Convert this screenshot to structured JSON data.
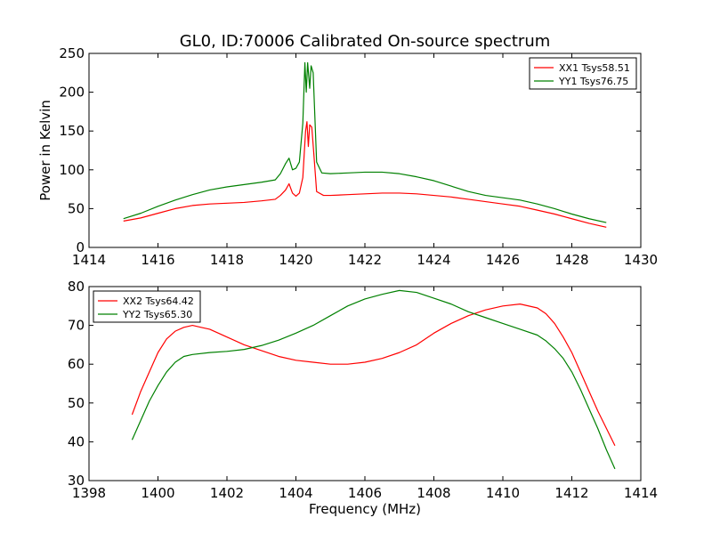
{
  "figure": {
    "title": "GL0, ID:70006 Calibrated On-source spectrum"
  },
  "chart_data": [
    {
      "type": "line",
      "title": "GL0, ID:70006 Calibrated On-source spectrum",
      "xlabel": "",
      "ylabel": "Power in Kelvin",
      "xlim": [
        1414,
        1430
      ],
      "ylim": [
        0,
        250
      ],
      "xticks": [
        "1414",
        "1416",
        "1418",
        "1420",
        "1422",
        "1424",
        "1426",
        "1428",
        "1430"
      ],
      "yticks": [
        "0",
        "50",
        "100",
        "150",
        "200",
        "250"
      ],
      "legend_position": "top-right",
      "grid": false,
      "series": [
        {
          "name": "XX1 Tsys58.51",
          "color": "#ff0000",
          "points": [
            [
              1415.0,
              34
            ],
            [
              1415.5,
              38
            ],
            [
              1416.0,
              44
            ],
            [
              1416.5,
              50
            ],
            [
              1417.0,
              54
            ],
            [
              1417.5,
              56
            ],
            [
              1418.0,
              57
            ],
            [
              1418.5,
              58
            ],
            [
              1419.0,
              60
            ],
            [
              1419.4,
              62
            ],
            [
              1419.55,
              67
            ],
            [
              1419.7,
              74
            ],
            [
              1419.8,
              82
            ],
            [
              1419.9,
              70
            ],
            [
              1420.0,
              66
            ],
            [
              1420.1,
              70
            ],
            [
              1420.2,
              90
            ],
            [
              1420.28,
              150
            ],
            [
              1420.32,
              162
            ],
            [
              1420.36,
              130
            ],
            [
              1420.4,
              158
            ],
            [
              1420.46,
              155
            ],
            [
              1420.52,
              120
            ],
            [
              1420.6,
              72
            ],
            [
              1420.8,
              67
            ],
            [
              1421.0,
              67
            ],
            [
              1421.5,
              68
            ],
            [
              1422.0,
              69
            ],
            [
              1422.5,
              70
            ],
            [
              1423.0,
              70
            ],
            [
              1423.5,
              69
            ],
            [
              1424.0,
              67
            ],
            [
              1424.5,
              65
            ],
            [
              1425.0,
              62
            ],
            [
              1425.5,
              59
            ],
            [
              1426.0,
              56
            ],
            [
              1426.5,
              53
            ],
            [
              1427.0,
              48
            ],
            [
              1427.5,
              43
            ],
            [
              1428.0,
              37
            ],
            [
              1428.5,
              31
            ],
            [
              1429.0,
              26
            ]
          ]
        },
        {
          "name": "YY1 Tsys76.75",
          "color": "#008000",
          "points": [
            [
              1415.0,
              37
            ],
            [
              1415.5,
              44
            ],
            [
              1416.0,
              53
            ],
            [
              1416.5,
              61
            ],
            [
              1417.0,
              68
            ],
            [
              1417.5,
              74
            ],
            [
              1418.0,
              78
            ],
            [
              1418.5,
              81
            ],
            [
              1419.0,
              84
            ],
            [
              1419.4,
              87
            ],
            [
              1419.55,
              95
            ],
            [
              1419.7,
              108
            ],
            [
              1419.8,
              115
            ],
            [
              1419.9,
              100
            ],
            [
              1420.0,
              102
            ],
            [
              1420.1,
              110
            ],
            [
              1420.2,
              160
            ],
            [
              1420.26,
              238
            ],
            [
              1420.3,
              200
            ],
            [
              1420.34,
              238
            ],
            [
              1420.4,
              205
            ],
            [
              1420.44,
              234
            ],
            [
              1420.5,
              225
            ],
            [
              1420.6,
              110
            ],
            [
              1420.75,
              96
            ],
            [
              1421.0,
              95
            ],
            [
              1421.5,
              96
            ],
            [
              1422.0,
              97
            ],
            [
              1422.5,
              97
            ],
            [
              1423.0,
              95
            ],
            [
              1423.5,
              91
            ],
            [
              1424.0,
              86
            ],
            [
              1424.5,
              79
            ],
            [
              1425.0,
              72
            ],
            [
              1425.5,
              67
            ],
            [
              1426.0,
              64
            ],
            [
              1426.5,
              61
            ],
            [
              1427.0,
              56
            ],
            [
              1427.5,
              50
            ],
            [
              1428.0,
              43
            ],
            [
              1428.5,
              37
            ],
            [
              1429.0,
              32
            ]
          ]
        }
      ]
    },
    {
      "type": "line",
      "title": "",
      "xlabel": "Frequency (MHz)",
      "ylabel": "",
      "xlim": [
        1398,
        1414
      ],
      "ylim": [
        30,
        80
      ],
      "xticks": [
        "1398",
        "1400",
        "1402",
        "1404",
        "1406",
        "1408",
        "1410",
        "1412",
        "1414"
      ],
      "yticks": [
        "30",
        "40",
        "50",
        "60",
        "70",
        "80"
      ],
      "legend_position": "top-left",
      "grid": false,
      "series": [
        {
          "name": "XX2 Tsys64.42",
          "color": "#ff0000",
          "points": [
            [
              1399.25,
              47
            ],
            [
              1399.5,
              53
            ],
            [
              1399.75,
              58
            ],
            [
              1400.0,
              63
            ],
            [
              1400.25,
              66.5
            ],
            [
              1400.5,
              68.5
            ],
            [
              1400.75,
              69.5
            ],
            [
              1401.0,
              70
            ],
            [
              1401.25,
              69.5
            ],
            [
              1401.5,
              69
            ],
            [
              1402.0,
              67
            ],
            [
              1402.5,
              65
            ],
            [
              1403.0,
              63.5
            ],
            [
              1403.5,
              62
            ],
            [
              1404.0,
              61
            ],
            [
              1404.5,
              60.5
            ],
            [
              1405.0,
              60
            ],
            [
              1405.5,
              60
            ],
            [
              1406.0,
              60.5
            ],
            [
              1406.5,
              61.5
            ],
            [
              1407.0,
              63
            ],
            [
              1407.5,
              65
            ],
            [
              1408.0,
              68
            ],
            [
              1408.5,
              70.5
            ],
            [
              1409.0,
              72.5
            ],
            [
              1409.5,
              74
            ],
            [
              1410.0,
              75
            ],
            [
              1410.5,
              75.5
            ],
            [
              1411.0,
              74.5
            ],
            [
              1411.25,
              73
            ],
            [
              1411.5,
              70.5
            ],
            [
              1411.75,
              67
            ],
            [
              1412.0,
              63
            ],
            [
              1412.25,
              58
            ],
            [
              1412.5,
              53
            ],
            [
              1412.75,
              48
            ],
            [
              1413.0,
              43.5
            ],
            [
              1413.25,
              39
            ]
          ]
        },
        {
          "name": "YY2 Tsys65.30",
          "color": "#008000",
          "points": [
            [
              1399.25,
              40.5
            ],
            [
              1399.5,
              45.5
            ],
            [
              1399.75,
              50.5
            ],
            [
              1400.0,
              54.5
            ],
            [
              1400.25,
              58
            ],
            [
              1400.5,
              60.5
            ],
            [
              1400.75,
              62
            ],
            [
              1401.0,
              62.5
            ],
            [
              1401.5,
              63
            ],
            [
              1402.0,
              63.3
            ],
            [
              1402.5,
              63.8
            ],
            [
              1403.0,
              64.8
            ],
            [
              1403.5,
              66.2
            ],
            [
              1404.0,
              68
            ],
            [
              1404.5,
              70
            ],
            [
              1405.0,
              72.5
            ],
            [
              1405.5,
              75
            ],
            [
              1406.0,
              76.8
            ],
            [
              1406.5,
              78
            ],
            [
              1407.0,
              79
            ],
            [
              1407.5,
              78.5
            ],
            [
              1408.0,
              77
            ],
            [
              1408.5,
              75.5
            ],
            [
              1409.0,
              73.5
            ],
            [
              1409.5,
              72
            ],
            [
              1410.0,
              70.5
            ],
            [
              1410.5,
              69
            ],
            [
              1411.0,
              67.5
            ],
            [
              1411.25,
              66
            ],
            [
              1411.5,
              64
            ],
            [
              1411.75,
              61.5
            ],
            [
              1412.0,
              58
            ],
            [
              1412.25,
              53.5
            ],
            [
              1412.5,
              48.5
            ],
            [
              1412.75,
              43.5
            ],
            [
              1413.0,
              38
            ],
            [
              1413.25,
              33
            ]
          ]
        }
      ]
    }
  ]
}
